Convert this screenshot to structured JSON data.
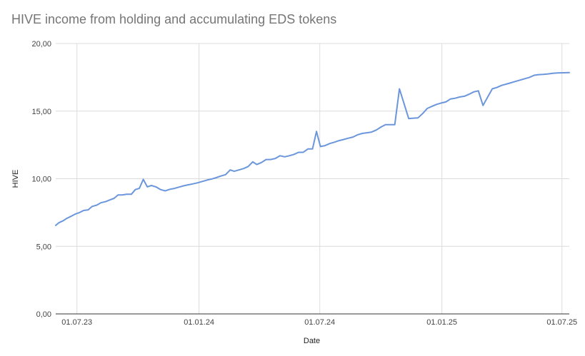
{
  "chart_data": {
    "type": "line",
    "title": "HIVE income from holding and accumulating EDS tokens",
    "xlabel": "Date",
    "ylabel": "HIVE",
    "ylim": [
      0,
      20
    ],
    "y_ticks": [
      "0,00",
      "5,00",
      "10,00",
      "15,00",
      "20,00"
    ],
    "x_ticks": [
      {
        "date": "2023-07-01",
        "label": "01.07.23"
      },
      {
        "date": "2024-01-01",
        "label": "01.01.24"
      },
      {
        "date": "2024-07-01",
        "label": "01.07.24"
      },
      {
        "date": "2025-01-01",
        "label": "01.01.25"
      },
      {
        "date": "2025-07-01",
        "label": "01.07.25"
      }
    ],
    "xlim": [
      "2023-05-30",
      "2025-07-12"
    ],
    "grid": true,
    "line_color": "#6b96dc",
    "series": [
      {
        "points": [
          [
            "2023-05-30",
            6.55
          ],
          [
            "2023-06-04",
            6.75
          ],
          [
            "2023-06-10",
            6.88
          ],
          [
            "2023-06-15",
            7.05
          ],
          [
            "2023-06-22",
            7.22
          ],
          [
            "2023-06-29",
            7.4
          ],
          [
            "2023-07-05",
            7.5
          ],
          [
            "2023-07-11",
            7.65
          ],
          [
            "2023-07-18",
            7.7
          ],
          [
            "2023-07-24",
            7.95
          ],
          [
            "2023-07-31",
            8.05
          ],
          [
            "2023-08-06",
            8.22
          ],
          [
            "2023-08-13",
            8.3
          ],
          [
            "2023-08-19",
            8.42
          ],
          [
            "2023-08-26",
            8.55
          ],
          [
            "2023-09-01",
            8.8
          ],
          [
            "2023-09-07",
            8.8
          ],
          [
            "2023-09-14",
            8.85
          ],
          [
            "2023-09-21",
            8.85
          ],
          [
            "2023-09-27",
            9.2
          ],
          [
            "2023-10-03",
            9.28
          ],
          [
            "2023-10-09",
            9.95
          ],
          [
            "2023-10-15",
            9.4
          ],
          [
            "2023-10-21",
            9.5
          ],
          [
            "2023-10-28",
            9.4
          ],
          [
            "2023-11-04",
            9.2
          ],
          [
            "2023-11-11",
            9.1
          ],
          [
            "2023-11-18",
            9.22
          ],
          [
            "2023-11-25",
            9.28
          ],
          [
            "2023-12-02",
            9.38
          ],
          [
            "2023-12-09",
            9.48
          ],
          [
            "2023-12-16",
            9.55
          ],
          [
            "2023-12-23",
            9.62
          ],
          [
            "2023-12-30",
            9.7
          ],
          [
            "2024-01-06",
            9.8
          ],
          [
            "2024-01-13",
            9.9
          ],
          [
            "2024-01-20",
            9.98
          ],
          [
            "2024-01-27",
            10.08
          ],
          [
            "2024-02-03",
            10.2
          ],
          [
            "2024-02-10",
            10.3
          ],
          [
            "2024-02-17",
            10.65
          ],
          [
            "2024-02-23",
            10.55
          ],
          [
            "2024-03-01",
            10.65
          ],
          [
            "2024-03-08",
            10.75
          ],
          [
            "2024-03-15",
            10.9
          ],
          [
            "2024-03-22",
            11.25
          ],
          [
            "2024-03-28",
            11.05
          ],
          [
            "2024-04-04",
            11.2
          ],
          [
            "2024-04-11",
            11.42
          ],
          [
            "2024-04-18",
            11.42
          ],
          [
            "2024-04-25",
            11.5
          ],
          [
            "2024-05-02",
            11.7
          ],
          [
            "2024-05-09",
            11.62
          ],
          [
            "2024-05-16",
            11.7
          ],
          [
            "2024-05-23",
            11.8
          ],
          [
            "2024-05-30",
            11.95
          ],
          [
            "2024-06-06",
            11.95
          ],
          [
            "2024-06-13",
            12.2
          ],
          [
            "2024-06-20",
            12.2
          ],
          [
            "2024-06-26",
            13.5
          ],
          [
            "2024-07-02",
            12.38
          ],
          [
            "2024-07-09",
            12.45
          ],
          [
            "2024-07-16",
            12.6
          ],
          [
            "2024-07-23",
            12.7
          ],
          [
            "2024-07-30",
            12.82
          ],
          [
            "2024-08-06",
            12.9
          ],
          [
            "2024-08-13",
            13.0
          ],
          [
            "2024-08-20",
            13.08
          ],
          [
            "2024-08-27",
            13.25
          ],
          [
            "2024-09-03",
            13.35
          ],
          [
            "2024-09-10",
            13.4
          ],
          [
            "2024-09-17",
            13.45
          ],
          [
            "2024-09-24",
            13.6
          ],
          [
            "2024-10-01",
            13.82
          ],
          [
            "2024-10-08",
            14.0
          ],
          [
            "2024-10-15",
            14.0
          ],
          [
            "2024-10-22",
            14.0
          ],
          [
            "2024-10-29",
            16.65
          ],
          [
            "2024-11-12",
            14.45
          ],
          [
            "2024-11-19",
            14.48
          ],
          [
            "2024-11-26",
            14.5
          ],
          [
            "2024-12-03",
            14.82
          ],
          [
            "2024-12-10",
            15.2
          ],
          [
            "2024-12-17",
            15.35
          ],
          [
            "2024-12-24",
            15.5
          ],
          [
            "2024-12-31",
            15.6
          ],
          [
            "2025-01-07",
            15.68
          ],
          [
            "2025-01-14",
            15.9
          ],
          [
            "2025-01-21",
            15.95
          ],
          [
            "2025-01-28",
            16.05
          ],
          [
            "2025-02-04",
            16.1
          ],
          [
            "2025-02-11",
            16.25
          ],
          [
            "2025-02-18",
            16.42
          ],
          [
            "2025-02-25",
            16.5
          ],
          [
            "2025-03-04",
            15.42
          ],
          [
            "2025-03-18",
            16.65
          ],
          [
            "2025-03-25",
            16.75
          ],
          [
            "2025-04-01",
            16.9
          ],
          [
            "2025-04-08",
            17.0
          ],
          [
            "2025-04-15",
            17.1
          ],
          [
            "2025-04-22",
            17.2
          ],
          [
            "2025-04-29",
            17.3
          ],
          [
            "2025-05-06",
            17.4
          ],
          [
            "2025-05-13",
            17.5
          ],
          [
            "2025-05-20",
            17.65
          ],
          [
            "2025-05-27",
            17.7
          ],
          [
            "2025-06-03",
            17.72
          ],
          [
            "2025-06-10",
            17.75
          ],
          [
            "2025-06-17",
            17.8
          ],
          [
            "2025-06-24",
            17.82
          ],
          [
            "2025-07-12",
            17.85
          ]
        ]
      }
    ]
  }
}
